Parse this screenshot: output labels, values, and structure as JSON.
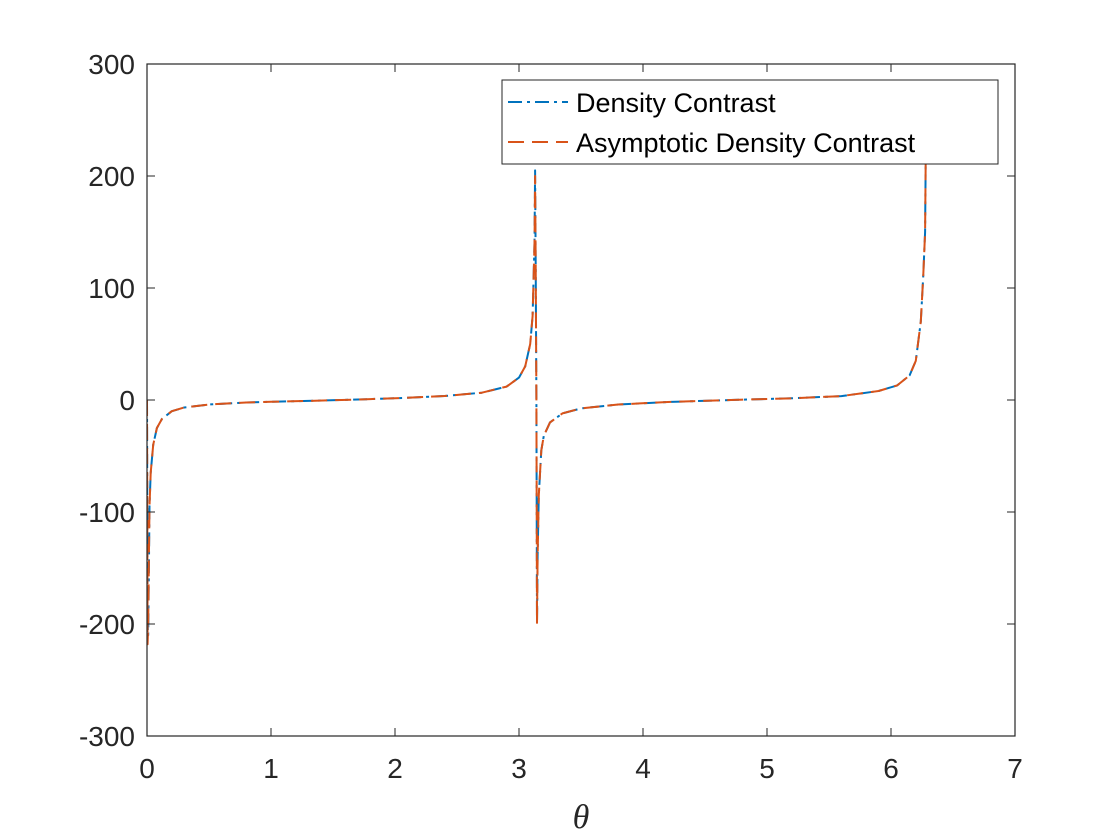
{
  "chart_data": {
    "type": "line",
    "title": "",
    "xlabel": "θ",
    "ylabel": "",
    "xlim": [
      0,
      7
    ],
    "ylim": [
      -300,
      300
    ],
    "xticks": [
      0,
      1,
      2,
      3,
      4,
      5,
      6,
      7
    ],
    "yticks": [
      -300,
      -200,
      -100,
      0,
      100,
      200,
      300
    ],
    "grid": false,
    "legend_position": "top-right",
    "series": [
      {
        "name": "Density Contrast",
        "color": "#0072BD",
        "line_style": "dash-dot",
        "x": [
          0.0,
          0.005,
          0.01,
          0.015,
          0.02,
          0.03,
          0.05,
          0.08,
          0.12,
          0.2,
          0.3,
          0.5,
          0.8,
          1.0,
          1.3,
          1.57,
          1.8,
          2.1,
          2.4,
          2.7,
          2.9,
          3.0,
          3.05,
          3.09,
          3.11,
          3.125,
          3.13,
          3.135,
          3.14,
          3.145,
          3.15,
          3.16,
          3.18,
          3.2,
          3.25,
          3.35,
          3.5,
          3.8,
          4.2,
          4.71,
          5.2,
          5.6,
          5.9,
          6.05,
          6.15,
          6.2,
          6.24,
          6.26,
          6.275,
          6.28
        ],
        "y": [
          0,
          -200,
          -210,
          -150,
          -95,
          -65,
          -40,
          -25,
          -17,
          -10,
          -6.7,
          -4,
          -2.2,
          -1.6,
          -0.8,
          0,
          0.8,
          2,
          3.6,
          6.5,
          12,
          20,
          30,
          50,
          75,
          140,
          205,
          120,
          0,
          -200,
          -140,
          -85,
          -45,
          -32,
          -20,
          -12,
          -7.5,
          -4,
          -1.8,
          0,
          1.5,
          3.5,
          8,
          13,
          22,
          35,
          70,
          110,
          150,
          215
        ]
      },
      {
        "name": "Asymptotic Density Contrast",
        "color": "#D95319",
        "line_style": "dashed",
        "x": [
          0.0,
          0.005,
          0.01,
          0.015,
          0.02,
          0.03,
          0.05,
          0.08,
          0.12,
          0.2,
          0.3,
          0.5,
          0.8,
          1.0,
          1.3,
          1.57,
          1.8,
          2.1,
          2.4,
          2.7,
          2.9,
          3.0,
          3.05,
          3.09,
          3.11,
          3.125,
          3.13,
          3.135,
          3.14,
          3.145,
          3.15,
          3.16,
          3.18,
          3.2,
          3.25,
          3.35,
          3.5,
          3.8,
          4.2,
          4.71,
          5.2,
          5.6,
          5.9,
          6.05,
          6.15,
          6.2,
          6.24,
          6.26,
          6.275,
          6.28
        ],
        "y": [
          0,
          -218,
          -200,
          -140,
          -95,
          -65,
          -40,
          -25,
          -17,
          -10,
          -6.7,
          -4,
          -2.2,
          -1.6,
          -0.8,
          0,
          0.8,
          2,
          3.6,
          6.5,
          12,
          20,
          30,
          50,
          75,
          140,
          200,
          120,
          0,
          -200,
          -140,
          -85,
          -45,
          -32,
          -20,
          -12,
          -7.5,
          -4,
          -1.8,
          0,
          1.5,
          3.5,
          8,
          13,
          22,
          35,
          70,
          110,
          150,
          215
        ]
      }
    ]
  }
}
